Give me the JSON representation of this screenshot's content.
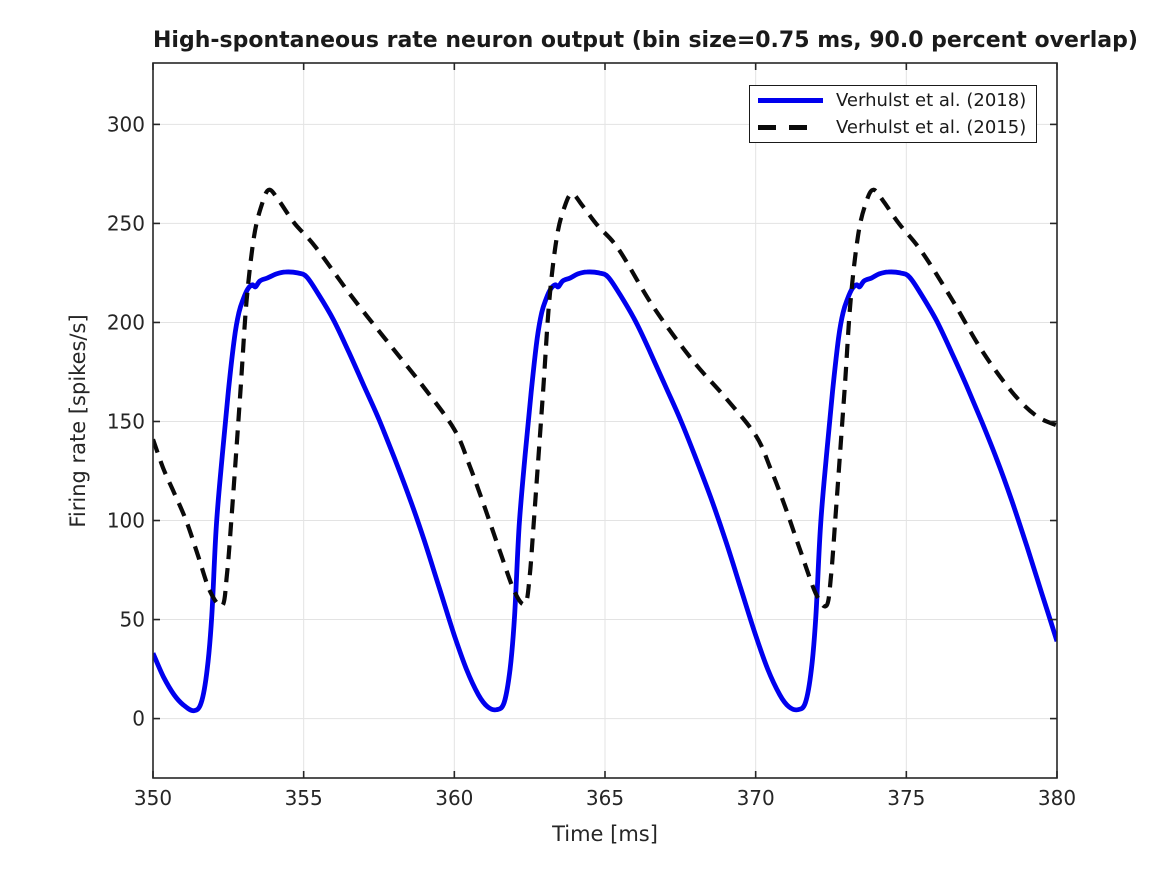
{
  "title": "High-spontaneous rate neuron output (bin size=0.75 ms, 90.0 percent overlap)",
  "colors": {
    "series_2018": "#0000ee",
    "series_2015": "#0a0a0a",
    "axis": "#262626",
    "grid": "#e3e3e3",
    "background": "#ffffff"
  },
  "chart_data": {
    "type": "line",
    "title": "High-spontaneous rate neuron output (bin size=0.75 ms, 90.0 percent overlap)",
    "xlabel": "Time [ms]",
    "ylabel": "Firing rate [spikes/s]",
    "xlim": [
      350,
      380
    ],
    "ylim": [
      -30,
      331
    ],
    "x_ticks": [
      350,
      355,
      360,
      365,
      370,
      375,
      380
    ],
    "y_ticks": [
      0,
      50,
      100,
      150,
      200,
      250,
      300
    ],
    "grid": true,
    "legend_position": "top-right",
    "series": [
      {
        "name": "Verhulst et al. (2018)",
        "color": "#0000ee",
        "style": "solid",
        "width": 4.8,
        "points": [
          [
            350.0,
            33
          ],
          [
            350.35,
            21
          ],
          [
            350.7,
            12
          ],
          [
            351.0,
            7
          ],
          [
            351.35,
            4
          ],
          [
            351.6,
            8
          ],
          [
            351.8,
            25
          ],
          [
            351.95,
            52
          ],
          [
            352.1,
            97
          ],
          [
            352.3,
            133
          ],
          [
            352.5,
            165
          ],
          [
            352.7,
            192
          ],
          [
            352.85,
            205
          ],
          [
            353.0,
            212
          ],
          [
            353.15,
            217
          ],
          [
            353.3,
            219
          ],
          [
            353.4,
            218
          ],
          [
            353.55,
            221
          ],
          [
            353.8,
            222.5
          ],
          [
            354.1,
            224.5
          ],
          [
            354.4,
            225.5
          ],
          [
            354.8,
            225
          ],
          [
            355.1,
            223
          ],
          [
            355.5,
            214
          ],
          [
            356.0,
            201
          ],
          [
            356.5,
            185
          ],
          [
            357.0,
            168
          ],
          [
            357.5,
            151
          ],
          [
            358.0,
            132
          ],
          [
            358.5,
            112
          ],
          [
            359.0,
            90
          ],
          [
            359.5,
            66
          ],
          [
            360.0,
            42
          ],
          [
            360.4,
            25
          ],
          [
            360.8,
            12
          ],
          [
            361.1,
            6
          ],
          [
            361.4,
            4.5
          ],
          [
            361.65,
            8
          ],
          [
            361.85,
            25
          ],
          [
            362.0,
            52
          ],
          [
            362.15,
            97
          ],
          [
            362.35,
            133
          ],
          [
            362.55,
            165
          ],
          [
            362.75,
            192
          ],
          [
            362.9,
            205
          ],
          [
            363.05,
            212
          ],
          [
            363.2,
            217
          ],
          [
            363.35,
            219
          ],
          [
            363.45,
            218
          ],
          [
            363.6,
            221
          ],
          [
            363.85,
            222.5
          ],
          [
            364.1,
            224.5
          ],
          [
            364.4,
            225.5
          ],
          [
            364.8,
            225
          ],
          [
            365.1,
            223
          ],
          [
            365.5,
            214
          ],
          [
            366.0,
            201
          ],
          [
            366.5,
            185
          ],
          [
            367.0,
            168
          ],
          [
            367.5,
            151
          ],
          [
            368.0,
            132
          ],
          [
            368.5,
            112
          ],
          [
            369.0,
            90
          ],
          [
            369.5,
            66
          ],
          [
            370.0,
            42
          ],
          [
            370.4,
            25
          ],
          [
            370.8,
            12
          ],
          [
            371.1,
            6
          ],
          [
            371.4,
            4.5
          ],
          [
            371.65,
            8
          ],
          [
            371.85,
            25
          ],
          [
            372.0,
            52
          ],
          [
            372.15,
            97
          ],
          [
            372.35,
            133
          ],
          [
            372.55,
            165
          ],
          [
            372.75,
            192
          ],
          [
            372.9,
            205
          ],
          [
            373.05,
            212
          ],
          [
            373.2,
            217
          ],
          [
            373.35,
            219
          ],
          [
            373.45,
            218
          ],
          [
            373.6,
            221
          ],
          [
            373.85,
            222.5
          ],
          [
            374.1,
            224.5
          ],
          [
            374.4,
            225.5
          ],
          [
            374.8,
            225
          ],
          [
            375.1,
            223
          ],
          [
            375.5,
            214
          ],
          [
            376.0,
            201
          ],
          [
            376.5,
            185
          ],
          [
            377.0,
            168
          ],
          [
            377.5,
            150
          ],
          [
            378.0,
            131
          ],
          [
            378.5,
            110
          ],
          [
            379.0,
            87
          ],
          [
            379.5,
            63
          ],
          [
            380.0,
            39
          ]
        ]
      },
      {
        "name": "Verhulst et al. (2015)",
        "color": "#0a0a0a",
        "style": "dashed",
        "width": 4.2,
        "points": [
          [
            350.0,
            141
          ],
          [
            350.35,
            126
          ],
          [
            350.7,
            114
          ],
          [
            351.1,
            100
          ],
          [
            351.5,
            82
          ],
          [
            351.9,
            64
          ],
          [
            352.3,
            57
          ],
          [
            352.45,
            72
          ],
          [
            352.6,
            100
          ],
          [
            352.9,
            165
          ],
          [
            353.1,
            210
          ],
          [
            353.35,
            243
          ],
          [
            353.6,
            259
          ],
          [
            353.85,
            267
          ],
          [
            354.2,
            261
          ],
          [
            354.7,
            250
          ],
          [
            355.4,
            238
          ],
          [
            356.6,
            213
          ],
          [
            357.9,
            188
          ],
          [
            359.0,
            167
          ],
          [
            360.0,
            146
          ],
          [
            360.5,
            128
          ],
          [
            361.0,
            107
          ],
          [
            361.5,
            85
          ],
          [
            362.0,
            64
          ],
          [
            362.35,
            58
          ],
          [
            362.5,
            72
          ],
          [
            362.65,
            102
          ],
          [
            362.95,
            166
          ],
          [
            363.15,
            211
          ],
          [
            363.4,
            243
          ],
          [
            363.65,
            258
          ],
          [
            363.9,
            265
          ],
          [
            364.25,
            259
          ],
          [
            364.75,
            249
          ],
          [
            365.45,
            237
          ],
          [
            366.6,
            208
          ],
          [
            367.9,
            181
          ],
          [
            369.0,
            162
          ],
          [
            370.0,
            143
          ],
          [
            370.5,
            126
          ],
          [
            371.0,
            106
          ],
          [
            371.5,
            84
          ],
          [
            372.0,
            63
          ],
          [
            372.35,
            57
          ],
          [
            372.5,
            72
          ],
          [
            372.65,
            102
          ],
          [
            372.95,
            166
          ],
          [
            373.15,
            211
          ],
          [
            373.4,
            244
          ],
          [
            373.65,
            260
          ],
          [
            373.9,
            267
          ],
          [
            374.25,
            261
          ],
          [
            374.75,
            250
          ],
          [
            375.5,
            236
          ],
          [
            376.5,
            212
          ],
          [
            377.5,
            186
          ],
          [
            378.5,
            165
          ],
          [
            379.3,
            153
          ],
          [
            380.0,
            148
          ]
        ]
      }
    ]
  }
}
